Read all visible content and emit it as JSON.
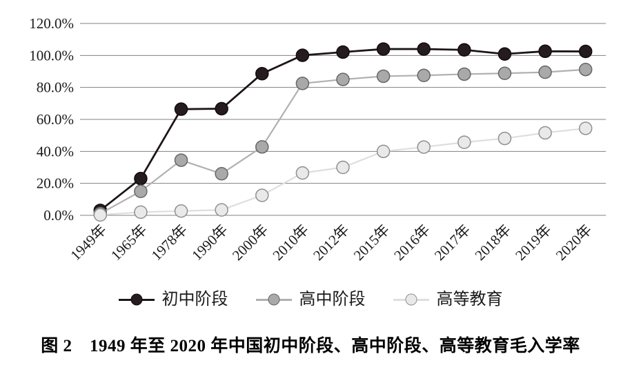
{
  "figure": {
    "caption": "图 2　1949 年至 2020 年中国初中阶段、高中阶段、高等教育毛入学率"
  },
  "chart_data": {
    "type": "line",
    "title": "",
    "xlabel": "",
    "ylabel": "",
    "categories": [
      "1949年",
      "1965年",
      "1978年",
      "1990年",
      "2000年",
      "2010年",
      "2012年",
      "2015年",
      "2016年",
      "2017年",
      "2018年",
      "2019年",
      "2020年"
    ],
    "series": [
      {
        "name": "初中阶段",
        "values": [
          3.1,
          23.0,
          66.4,
          66.7,
          88.6,
          100.1,
          102.1,
          104.0,
          104.0,
          103.5,
          100.9,
          102.6,
          102.5
        ],
        "line_color": "#1d1518",
        "marker_fill": "#241c1f",
        "marker_stroke": "#15090d",
        "line_width": 2.8
      },
      {
        "name": "高中阶段",
        "values": [
          1.1,
          15.0,
          34.5,
          26.0,
          42.8,
          82.5,
          85.0,
          87.0,
          87.5,
          88.3,
          88.8,
          89.5,
          91.2
        ],
        "line_color": "#b0b0b0",
        "marker_fill": "#a9a9a9",
        "marker_stroke": "#666666",
        "line_width": 2.2
      },
      {
        "name": "高等教育",
        "values": [
          0.26,
          2.0,
          2.7,
          3.4,
          12.5,
          26.5,
          30.0,
          40.0,
          42.7,
          45.7,
          48.1,
          51.6,
          54.4
        ],
        "line_color": "#dedede",
        "marker_fill": "#e9e9e9",
        "marker_stroke": "#8f8f8f",
        "line_width": 2.2
      }
    ],
    "ylim": [
      0,
      120
    ],
    "yticks": [
      0,
      20,
      40,
      60,
      80,
      100,
      120
    ],
    "ytick_labels": [
      "0.0%",
      "20.0%",
      "40.0%",
      "60.0%",
      "80.0%",
      "100.0%",
      "120.0%"
    ],
    "grid": "horizontal",
    "gridline_color": "#808080",
    "text_color": "#1a1a1a",
    "legend_position": "bottom"
  }
}
